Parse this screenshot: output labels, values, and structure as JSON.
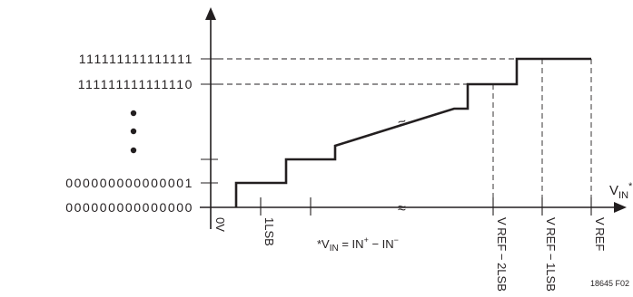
{
  "diagram": {
    "y_codes": {
      "top": "111111111111111",
      "second": "111111111111110",
      "one": "000000000000001",
      "zero": "000000000000000"
    },
    "x_labels": {
      "zero": "0V",
      "one_lsb": "1LSB",
      "vref_2lsb": "V REF − 2LSB",
      "vref_1lsb": "V REF − 1LSB",
      "vref": "V REF"
    },
    "x_axis_label": {
      "main": "V",
      "sub": "IN",
      "sup": "*"
    },
    "footnote": {
      "prefix": "*V",
      "sub": "IN",
      "eq": " = IN",
      "plus": "+",
      "minus_sep": " − IN",
      "minus": "−"
    },
    "figure_id": "18645 F02",
    "break_mark": "≈"
  }
}
